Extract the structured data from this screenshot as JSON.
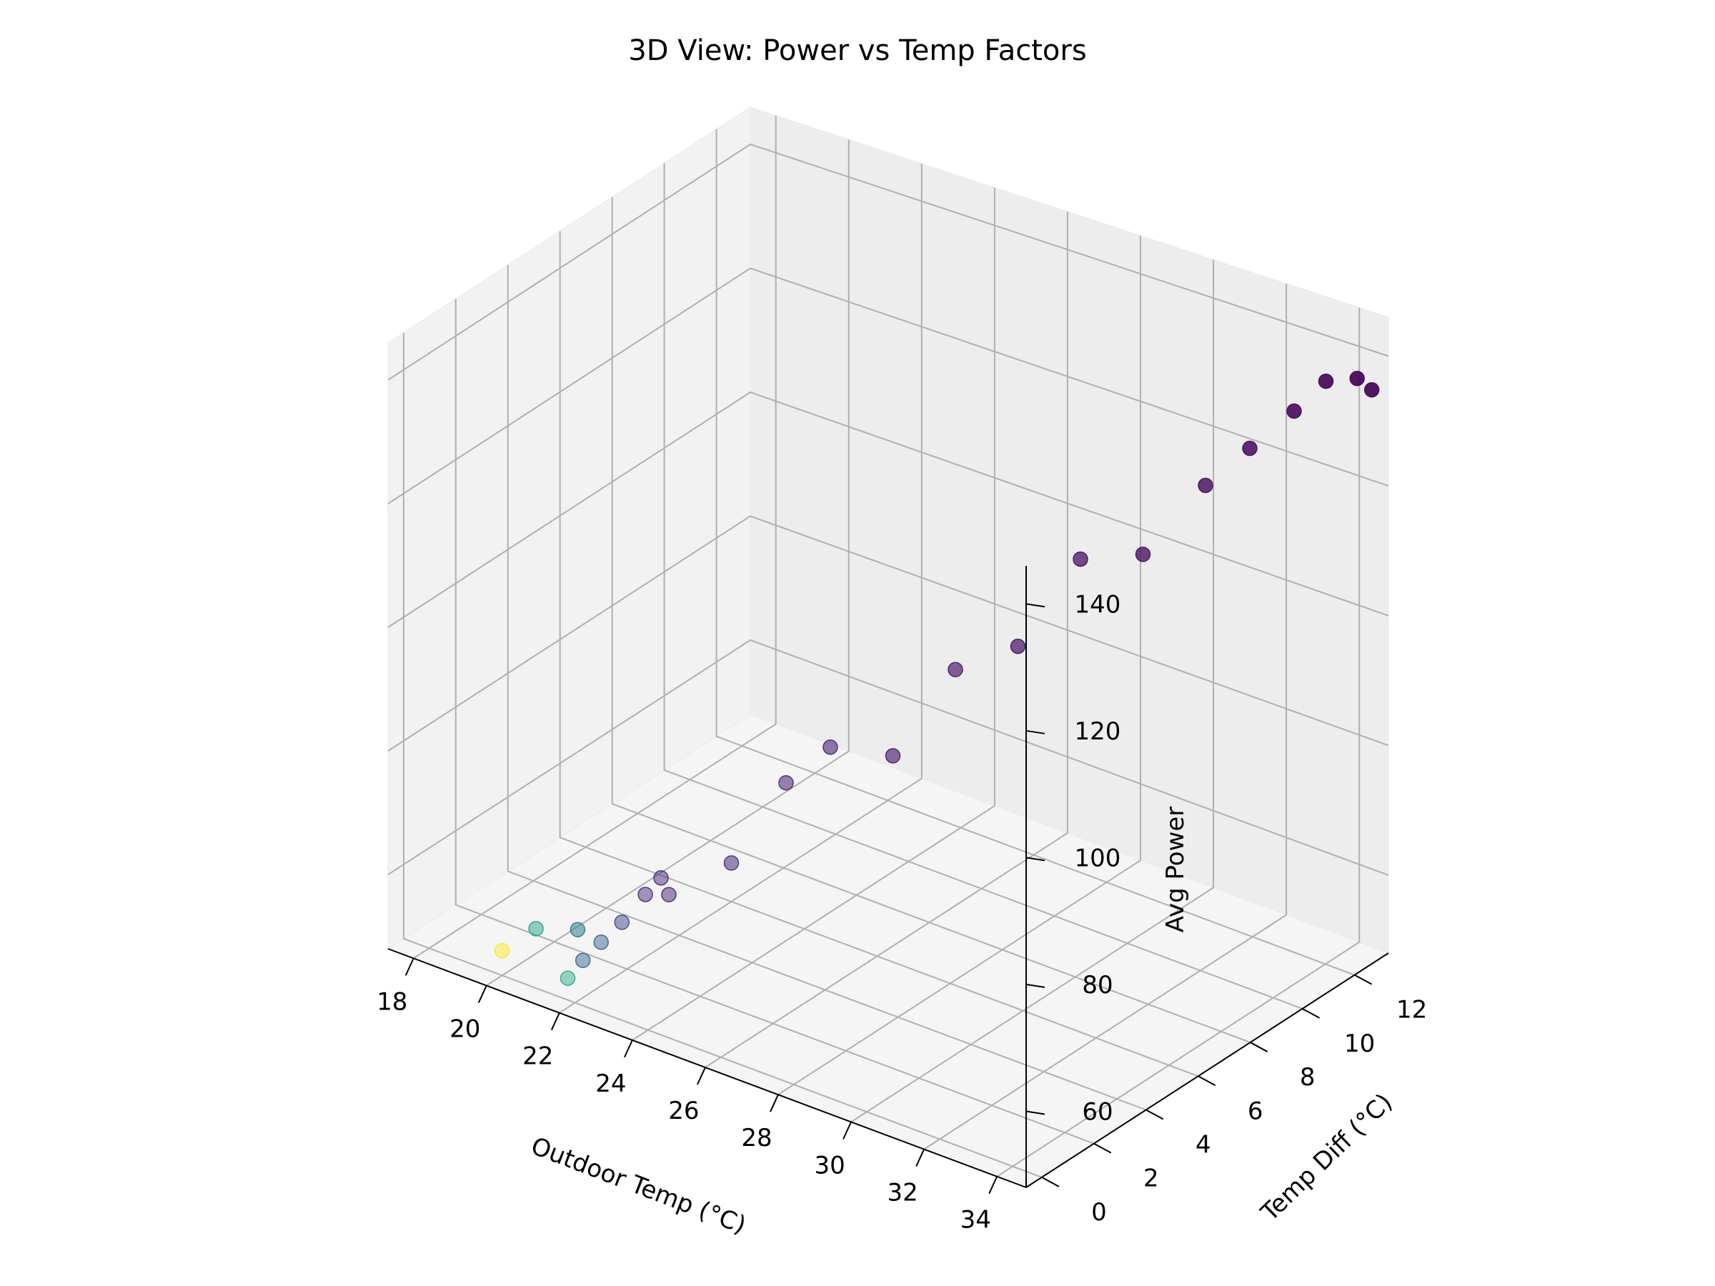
{
  "chart_data": {
    "type": "scatter",
    "projection": "3d",
    "title": "3D View: Power vs Temp Factors",
    "xlabel": "Outdoor Temp (°C)",
    "ylabel": "Temp Diff (°C)",
    "zlabel": "Avg Power",
    "xlim": [
      17.3,
      34.8
    ],
    "ylim": [
      -0.6,
      13.3
    ],
    "zlim": [
      48,
      146
    ],
    "x_ticks": [
      "18",
      "20",
      "22",
      "24",
      "26",
      "28",
      "30",
      "32",
      "34"
    ],
    "y_ticks": [
      "0",
      "2",
      "4",
      "6",
      "8",
      "10",
      "12"
    ],
    "z_ticks": [
      "60",
      "80",
      "100",
      "120",
      "140"
    ],
    "grid": true,
    "colormap": "viridis",
    "colormap_stops": [
      "#440154",
      "#482878",
      "#3e4a89",
      "#31688e",
      "#26828e",
      "#1f9e89",
      "#35b779",
      "#6ece58",
      "#b5de2b",
      "#fde725"
    ],
    "points": [
      {
        "x": 20.0,
        "y": 0.0,
        "z": 52.0,
        "c": 1.0
      },
      {
        "x": 20.5,
        "y": 0.6,
        "z": 55.0,
        "c": 0.58
      },
      {
        "x": 21.0,
        "y": 1.5,
        "z": 53.5,
        "c": 0.4
      },
      {
        "x": 21.8,
        "y": 0.0,
        "z": 51.5,
        "c": 0.6
      },
      {
        "x": 22.0,
        "y": 0.3,
        "z": 54.0,
        "c": 0.32
      },
      {
        "x": 22.5,
        "y": 0.3,
        "z": 58.0,
        "c": 0.3
      },
      {
        "x": 23.0,
        "y": 0.4,
        "z": 62.0,
        "c": 0.2
      },
      {
        "x": 23.5,
        "y": 0.6,
        "z": 67.0,
        "c": 0.12
      },
      {
        "x": 24.0,
        "y": 0.5,
        "z": 71.0,
        "c": 0.1
      },
      {
        "x": 24.0,
        "y": 0.8,
        "z": 67.5,
        "c": 0.09
      },
      {
        "x": 25.0,
        "y": 1.8,
        "z": 72.0,
        "c": 0.12
      },
      {
        "x": 26.0,
        "y": 2.5,
        "z": 85.0,
        "c": 0.1
      },
      {
        "x": 26.5,
        "y": 3.5,
        "z": 89.0,
        "c": 0.09
      },
      {
        "x": 27.5,
        "y": 4.5,
        "z": 87.0,
        "c": 0.07
      },
      {
        "x": 28.5,
        "y": 5.5,
        "z": 100.0,
        "c": 0.06
      },
      {
        "x": 29.5,
        "y": 6.5,
        "z": 103.0,
        "c": 0.05
      },
      {
        "x": 30.5,
        "y": 7.5,
        "z": 116.0,
        "c": 0.04
      },
      {
        "x": 31.5,
        "y": 8.5,
        "z": 116.0,
        "c": 0.04
      },
      {
        "x": 32.5,
        "y": 9.5,
        "z": 126.0,
        "c": 0.03
      },
      {
        "x": 33.0,
        "y": 10.5,
        "z": 130.0,
        "c": 0.02
      },
      {
        "x": 33.5,
        "y": 11.5,
        "z": 134.0,
        "c": 0.02
      },
      {
        "x": 33.8,
        "y": 12.3,
        "z": 137.0,
        "c": 0.01
      },
      {
        "x": 34.3,
        "y": 12.8,
        "z": 137.0,
        "c": 0.01
      },
      {
        "x": 34.7,
        "y": 12.8,
        "z": 136.0,
        "c": 0.01
      }
    ]
  }
}
